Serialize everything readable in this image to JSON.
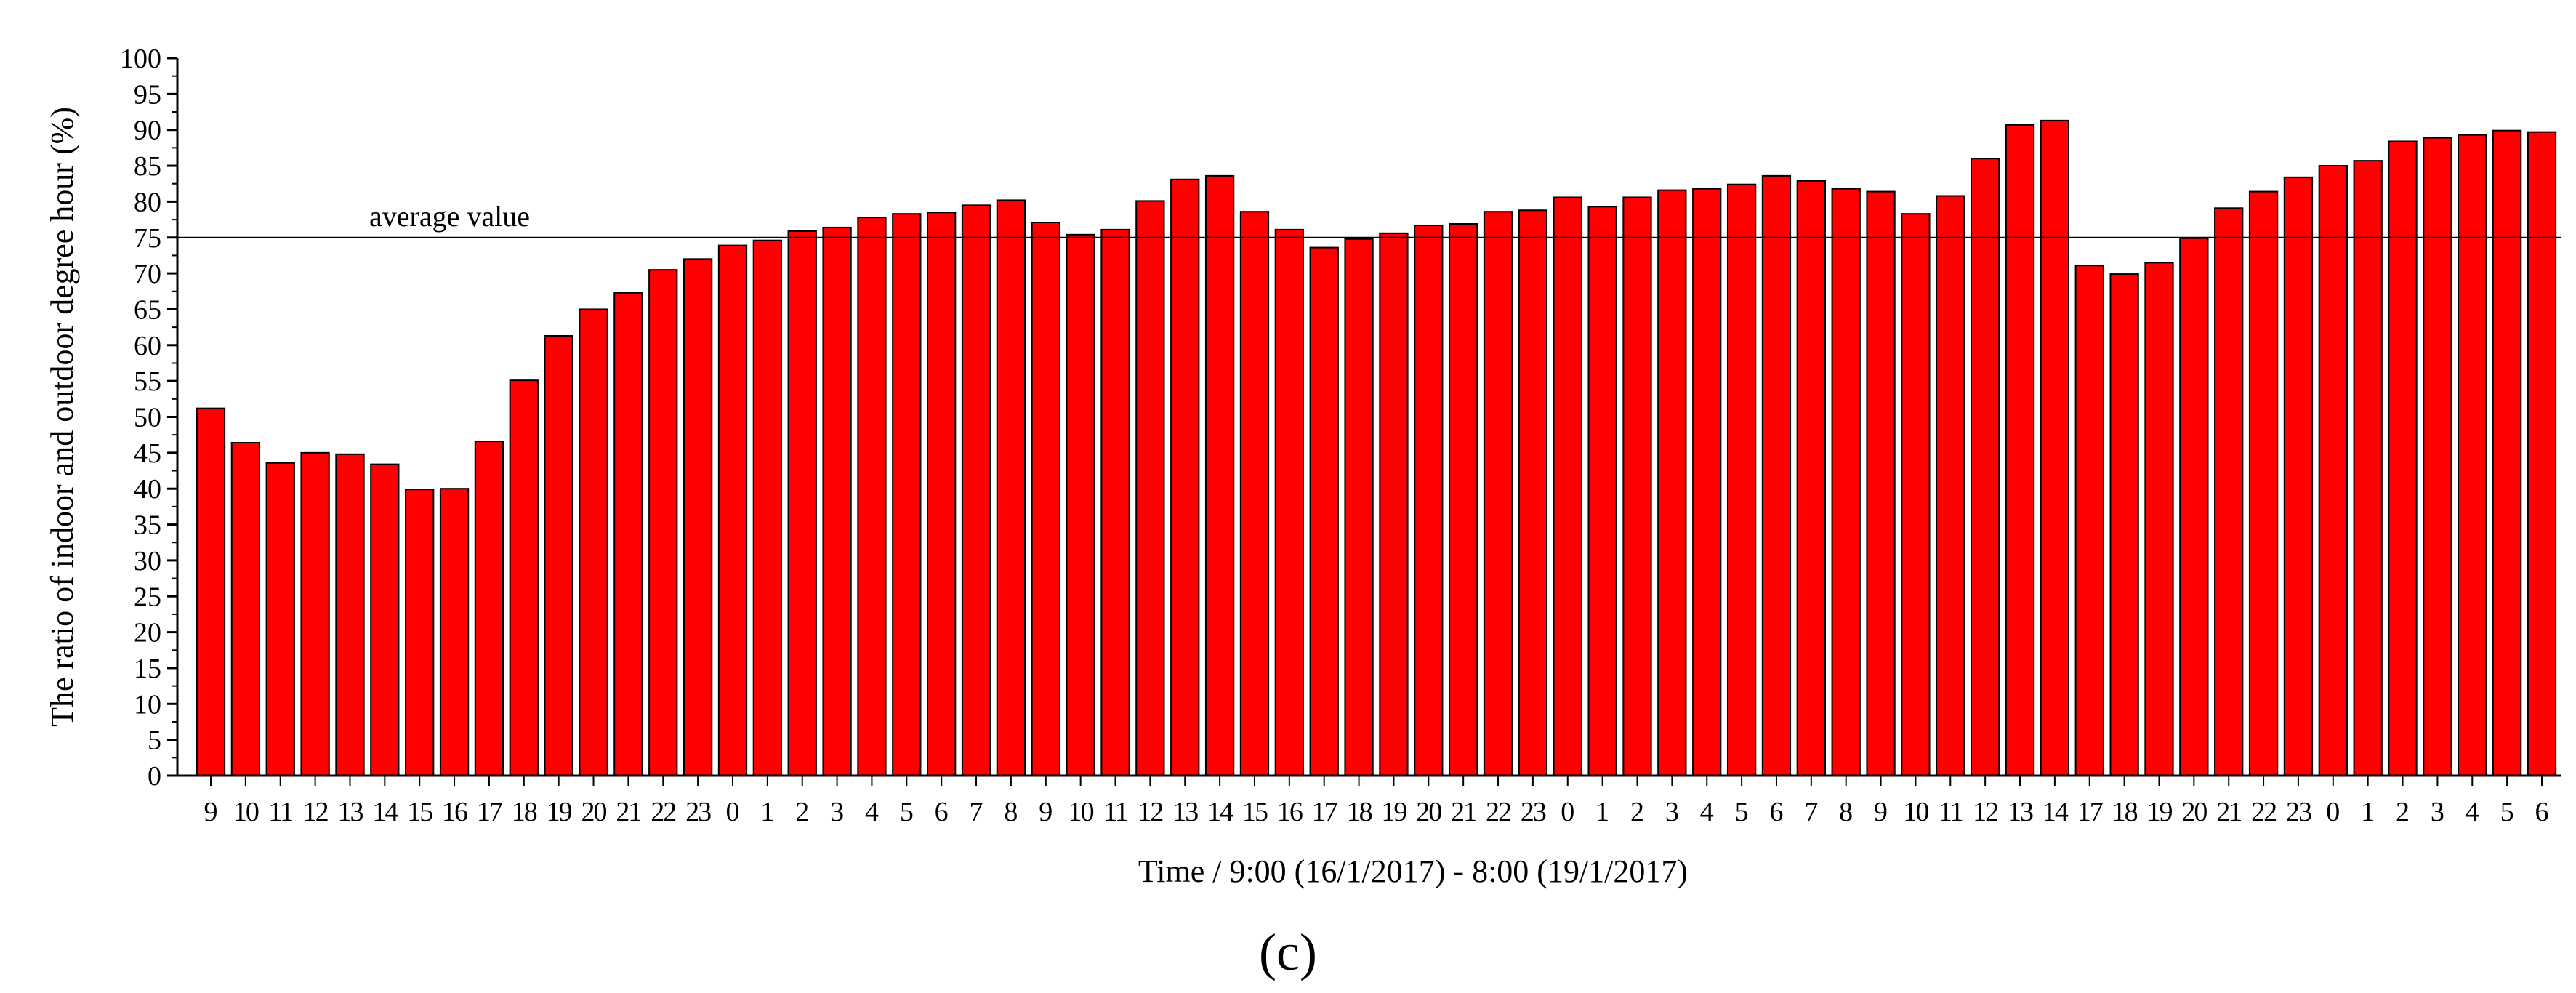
{
  "panel_label": "(c)",
  "chart_data": {
    "type": "bar",
    "title": "",
    "xlabel": "Time / 9:00 (16/1/2017) - 8:00 (19/1/2017)",
    "ylabel": "The ratio of indoor and outdoor degree hour (%)",
    "ylim": [
      0,
      100
    ],
    "yticks": [
      0,
      5,
      10,
      15,
      20,
      25,
      30,
      35,
      40,
      45,
      50,
      55,
      60,
      65,
      70,
      75,
      80,
      85,
      90,
      95,
      100
    ],
    "grid": false,
    "bar_color": "#ff0000",
    "bar_edge_color": "#000000",
    "categories": [
      "9",
      "10",
      "11",
      "12",
      "13",
      "14",
      "15",
      "16",
      "17",
      "18",
      "19",
      "20",
      "21",
      "22",
      "23",
      "0",
      "1",
      "2",
      "3",
      "4",
      "5",
      "6",
      "7",
      "8",
      "9",
      "10",
      "11",
      "12",
      "13",
      "14",
      "15",
      "16",
      "17",
      "18",
      "19",
      "20",
      "21",
      "22",
      "23",
      "0",
      "1",
      "2",
      "3",
      "4",
      "5",
      "6",
      "7",
      "8",
      "9",
      "10",
      "11",
      "12",
      "13",
      "14",
      "17",
      "18",
      "19",
      "20",
      "21",
      "22",
      "23",
      "0",
      "1",
      "2",
      "3",
      "4",
      "5",
      "6"
    ],
    "values": [
      51.2,
      46.4,
      43.6,
      45.0,
      44.8,
      43.4,
      39.9,
      40.0,
      46.6,
      55.1,
      61.3,
      65.0,
      67.3,
      70.5,
      72.0,
      73.9,
      74.6,
      75.9,
      76.4,
      77.8,
      78.3,
      78.5,
      79.5,
      80.2,
      77.1,
      75.4,
      76.1,
      80.1,
      83.1,
      83.6,
      78.6,
      76.1,
      73.6,
      74.8,
      75.6,
      76.7,
      76.9,
      78.6,
      78.8,
      80.6,
      79.3,
      80.6,
      81.6,
      81.8,
      82.4,
      83.6,
      82.9,
      81.8,
      81.4,
      78.3,
      80.8,
      86.0,
      90.7,
      91.3,
      71.1,
      69.9,
      71.5,
      74.9,
      79.1,
      81.4,
      83.4,
      85.0,
      85.7,
      88.4,
      88.9,
      89.3,
      89.9,
      89.7
    ],
    "annotations": [
      {
        "text": "average value",
        "y": 75
      }
    ]
  }
}
